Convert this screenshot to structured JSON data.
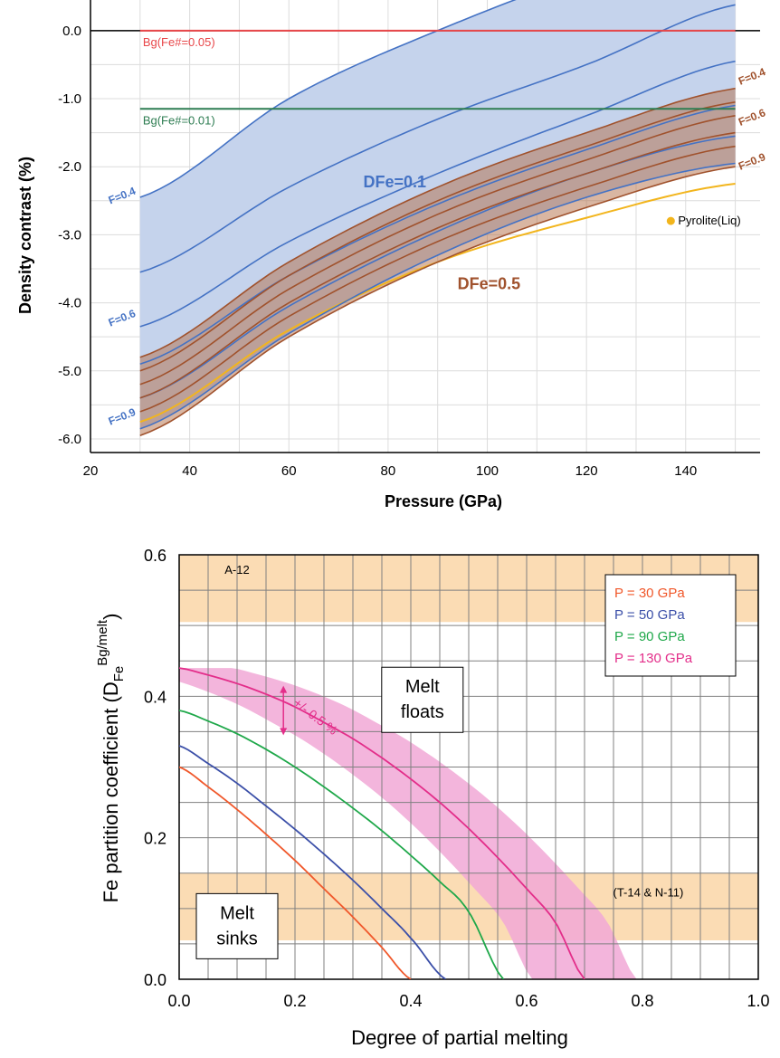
{
  "chart_data": [
    {
      "type": "line",
      "xlabel": "Pressure (GPa)",
      "ylabel": "Density contrast (%)",
      "xlim": [
        20,
        155
      ],
      "ylim": [
        -6.2,
        0.45
      ],
      "xticks": [
        "20",
        "40",
        "60",
        "80",
        "100",
        "120",
        "140"
      ],
      "yticks": [
        "0.0",
        "-1.0",
        "-2.0",
        "-3.0",
        "-4.0",
        "-5.0",
        "-6.0"
      ],
      "grid": true,
      "reference_lines": [
        {
          "name": "Bg(Fe#=0.05)",
          "y": 0.0,
          "x_range": [
            30,
            150
          ],
          "color": "#e8474a"
        },
        {
          "name": "Bg(Fe#=0.01)",
          "y": -1.15,
          "x_range": [
            30,
            150
          ],
          "color": "#2e7d52"
        }
      ],
      "bands": [
        {
          "name": "DFe=0.1",
          "color": "#4472c4",
          "fill": "#c5d3ec",
          "lines": [
            {
              "x": [
                30,
                60,
                90,
                120,
                150
              ],
              "y": [
                -2.45,
                -1.0,
                0.0,
                0.8,
                1.2
              ]
            },
            {
              "x": [
                30,
                60,
                90,
                120,
                150
              ],
              "y": [
                -3.55,
                -2.3,
                -1.3,
                -0.5,
                0.38
              ]
            },
            {
              "x": [
                30,
                60,
                90,
                120,
                150
              ],
              "y": [
                -4.35,
                -3.1,
                -2.1,
                -1.25,
                -0.45
              ]
            },
            {
              "x": [
                30,
                60,
                90,
                120,
                150
              ],
              "y": [
                -4.9,
                -3.6,
                -2.55,
                -1.75,
                -1.1
              ]
            },
            {
              "x": [
                30,
                60,
                90,
                120,
                150
              ],
              "y": [
                -5.4,
                -4.05,
                -2.95,
                -2.1,
                -1.55
              ]
            },
            {
              "x": [
                30,
                60,
                90,
                120,
                150
              ],
              "y": [
                -5.85,
                -4.45,
                -3.3,
                -2.45,
                -1.95
              ]
            }
          ]
        },
        {
          "name": "DFe=0.5",
          "color": "#a0522d",
          "fill": "rgba(180,110,70,0.5)",
          "lines": [
            {
              "x": [
                30,
                60,
                90,
                120,
                150
              ],
              "y": [
                -4.8,
                -3.4,
                -2.3,
                -1.5,
                -0.85
              ]
            },
            {
              "x": [
                30,
                60,
                90,
                120,
                150
              ],
              "y": [
                -5.0,
                -3.6,
                -2.5,
                -1.7,
                -1.05
              ]
            },
            {
              "x": [
                30,
                60,
                90,
                120,
                150
              ],
              "y": [
                -5.2,
                -3.8,
                -2.7,
                -1.9,
                -1.25
              ]
            },
            {
              "x": [
                30,
                60,
                90,
                120,
                150
              ],
              "y": [
                -5.4,
                -4.0,
                -2.9,
                -2.1,
                -1.5
              ]
            },
            {
              "x": [
                30,
                60,
                90,
                120,
                150
              ],
              "y": [
                -5.6,
                -4.2,
                -3.1,
                -2.3,
                -1.7
              ]
            },
            {
              "x": [
                30,
                60,
                90,
                120,
                150
              ],
              "y": [
                -5.95,
                -4.5,
                -3.4,
                -2.6,
                -2.0
              ]
            }
          ]
        }
      ],
      "pyrolite_line": {
        "name": "Pyrolite(Liq)",
        "color": "#f2b51d",
        "x": [
          30,
          60,
          90,
          120,
          150
        ],
        "y": [
          -5.75,
          -4.4,
          -3.4,
          -2.75,
          -2.25
        ]
      },
      "band_labels": [
        {
          "text": "DFe=0.1",
          "x": 75,
          "y": -2.3,
          "color": "#4472c4"
        },
        {
          "text": "DFe=0.5",
          "x": 94,
          "y": -3.8,
          "color": "#a0522d"
        }
      ],
      "f_labels_blue": [
        {
          "text": "F=0.4",
          "x": 24,
          "y": -2.55
        },
        {
          "text": "F=0.6",
          "x": 24,
          "y": -4.35
        },
        {
          "text": "F=0.9",
          "x": 24,
          "y": -5.8
        }
      ],
      "f_labels_brown": [
        {
          "text": "F=0.4",
          "x": 151,
          "y": -0.8
        },
        {
          "text": "F=0.6",
          "x": 151,
          "y": -1.4
        },
        {
          "text": "F=0.9",
          "x": 151,
          "y": -2.05
        }
      ],
      "legend": {
        "text": "Pyrolite(Liq)",
        "x": 137,
        "y": -2.85
      }
    },
    {
      "type": "line",
      "xlabel": "Degree of partial melting",
      "ylabel": "Fe partition coefficient (D",
      "ylabel_sub": "Fe",
      "ylabel_sup": "Bg/melt",
      "ylabel_close": ")",
      "xlim": [
        0,
        1.0
      ],
      "ylim": [
        0,
        0.6
      ],
      "xticks": [
        "0.0",
        "0.2",
        "0.4",
        "0.6",
        "0.8",
        "1.0"
      ],
      "yticks": [
        "0.0",
        "0.2",
        "0.4",
        "0.6"
      ],
      "grid": true,
      "shaded_regions": [
        {
          "name": "A-12",
          "y_range": [
            0.505,
            0.6
          ],
          "color": "#fbdcb4"
        },
        {
          "name": "(T-14 & N-11)",
          "y_range": [
            0.055,
            0.15
          ],
          "color": "#fbdcb4"
        }
      ],
      "series": [
        {
          "name": "P = 30 GPa",
          "color": "#f0582b",
          "x": [
            0,
            0.05,
            0.1,
            0.15,
            0.2,
            0.25,
            0.3,
            0.35,
            0.4
          ],
          "y": [
            0.3,
            0.272,
            0.24,
            0.205,
            0.168,
            0.128,
            0.088,
            0.045,
            0.0
          ]
        },
        {
          "name": "P = 50 GPa",
          "color": "#3b4fa8",
          "x": [
            0,
            0.05,
            0.1,
            0.15,
            0.2,
            0.25,
            0.3,
            0.35,
            0.4,
            0.46
          ],
          "y": [
            0.33,
            0.305,
            0.277,
            0.245,
            0.212,
            0.177,
            0.14,
            0.1,
            0.058,
            0.0
          ]
        },
        {
          "name": "P = 90 GPa",
          "color": "#1fa84a",
          "x": [
            0,
            0.05,
            0.1,
            0.15,
            0.2,
            0.25,
            0.3,
            0.35,
            0.4,
            0.45,
            0.5,
            0.56
          ],
          "y": [
            0.38,
            0.365,
            0.347,
            0.325,
            0.3,
            0.272,
            0.242,
            0.21,
            0.175,
            0.138,
            0.095,
            0.0
          ]
        },
        {
          "name": "P = 130 GPa",
          "color": "#e32e8a",
          "x": [
            0,
            0.05,
            0.1,
            0.15,
            0.2,
            0.25,
            0.3,
            0.35,
            0.4,
            0.45,
            0.5,
            0.55,
            0.6,
            0.65,
            0.7
          ],
          "y": [
            0.44,
            0.43,
            0.418,
            0.403,
            0.385,
            0.363,
            0.34,
            0.313,
            0.283,
            0.25,
            0.213,
            0.172,
            0.128,
            0.08,
            0.0
          ]
        }
      ],
      "uncertainty_band": {
        "series": "P = 130 GPa",
        "label": "+/- 0.5 %",
        "color": "#f1a8d6",
        "x_shift": 0.09
      },
      "uncertainty_arrow": {
        "x": 0.18,
        "y_range": [
          0.345,
          0.415
        ]
      },
      "text_boxes": [
        {
          "lines": [
            "Melt",
            "floats"
          ],
          "x": 0.42,
          "y": 0.395
        },
        {
          "lines": [
            "Melt",
            "sinks"
          ],
          "x": 0.1,
          "y": 0.075
        }
      ],
      "region_labels": [
        {
          "text": "A-12",
          "x": 0.1,
          "y": 0.578
        },
        {
          "text": "(T-14 & N-11)",
          "x": 0.81,
          "y": 0.122
        }
      ],
      "legend_position": "top-right"
    }
  ]
}
